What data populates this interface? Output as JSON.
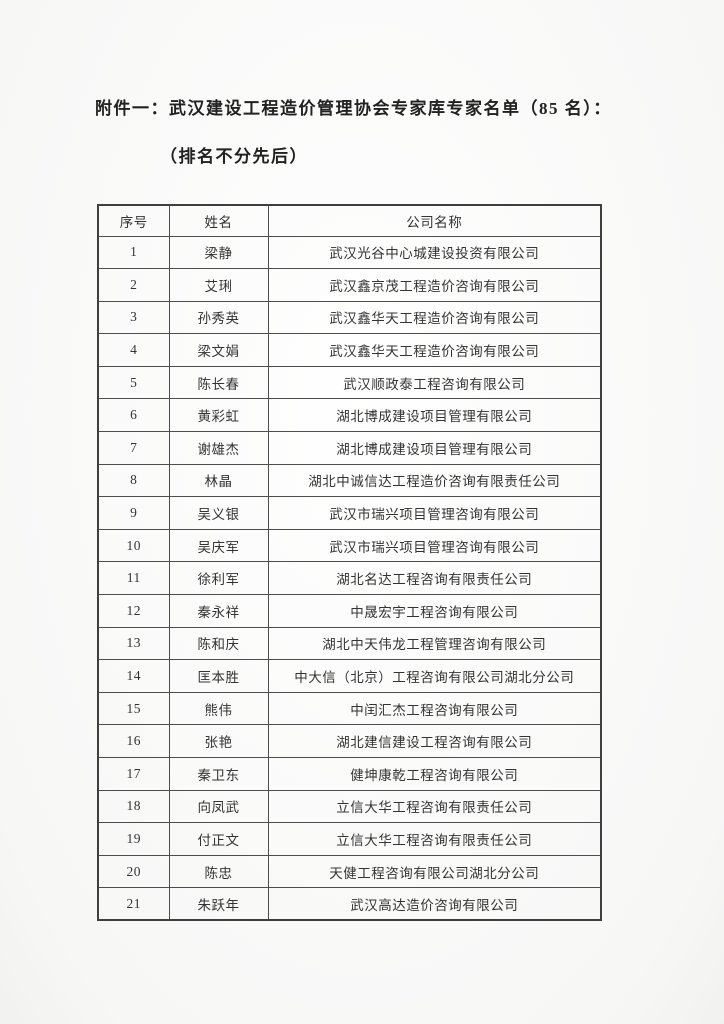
{
  "page": {
    "title_line1": "附件一：武汉建设工程造价管理协会专家库专家名单（85 名）：",
    "title_line2": "（排名不分先后）"
  },
  "table": {
    "headers": [
      "序号",
      "姓名",
      "公司名称"
    ],
    "rows": [
      {
        "no": "1",
        "name": "梁静",
        "company": "武汉光谷中心城建设投资有限公司"
      },
      {
        "no": "2",
        "name": "艾琍",
        "company": "武汉鑫京茂工程造价咨询有限公司"
      },
      {
        "no": "3",
        "name": "孙秀英",
        "company": "武汉鑫华天工程造价咨询有限公司"
      },
      {
        "no": "4",
        "name": "梁文娟",
        "company": "武汉鑫华天工程造价咨询有限公司"
      },
      {
        "no": "5",
        "name": "陈长春",
        "company": "武汉顺政泰工程咨询有限公司"
      },
      {
        "no": "6",
        "name": "黄彩虹",
        "company": "湖北博成建设项目管理有限公司"
      },
      {
        "no": "7",
        "name": "谢雄杰",
        "company": "湖北博成建设项目管理有限公司"
      },
      {
        "no": "8",
        "name": "林晶",
        "company": "湖北中诚信达工程造价咨询有限责任公司"
      },
      {
        "no": "9",
        "name": "吴义银",
        "company": "武汉市瑞兴项目管理咨询有限公司"
      },
      {
        "no": "10",
        "name": "吴庆军",
        "company": "武汉市瑞兴项目管理咨询有限公司"
      },
      {
        "no": "11",
        "name": "徐利军",
        "company": "湖北名达工程咨询有限责任公司"
      },
      {
        "no": "12",
        "name": "秦永祥",
        "company": "中晟宏宇工程咨询有限公司"
      },
      {
        "no": "13",
        "name": "陈和庆",
        "company": "湖北中天伟龙工程管理咨询有限公司"
      },
      {
        "no": "14",
        "name": "匡本胜",
        "company": "中大信（北京）工程咨询有限公司湖北分公司"
      },
      {
        "no": "15",
        "name": "熊伟",
        "company": "中闰汇杰工程咨询有限公司"
      },
      {
        "no": "16",
        "name": "张艳",
        "company": "湖北建信建设工程咨询有限公司"
      },
      {
        "no": "17",
        "name": "秦卫东",
        "company": "健坤康乾工程咨询有限公司"
      },
      {
        "no": "18",
        "name": "向凤武",
        "company": "立信大华工程咨询有限责任公司"
      },
      {
        "no": "19",
        "name": "付正文",
        "company": "立信大华工程咨询有限责任公司"
      },
      {
        "no": "20",
        "name": "陈忠",
        "company": "天健工程咨询有限公司湖北分公司"
      },
      {
        "no": "21",
        "name": "朱跃年",
        "company": "武汉高达造价咨询有限公司"
      }
    ]
  }
}
